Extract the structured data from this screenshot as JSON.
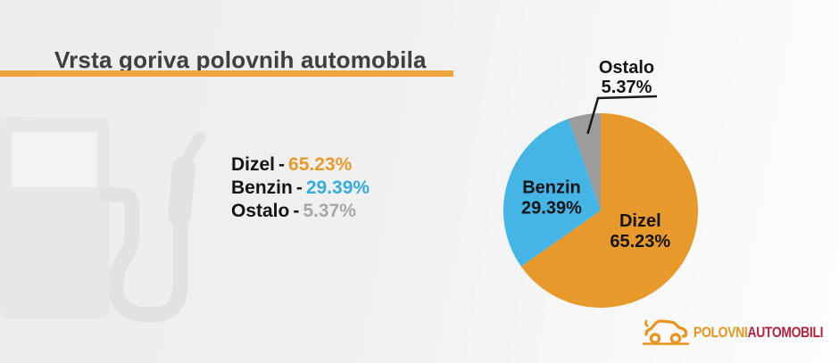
{
  "header": {
    "title": "Vrsta goriva polovnih automobila"
  },
  "legend": {
    "separator": "-",
    "items": [
      {
        "label": "Dizel",
        "value": "65.23%",
        "color": "#E89B2B"
      },
      {
        "label": "Benzin",
        "value": "29.39%",
        "color": "#35ACDE"
      },
      {
        "label": "Ostalo",
        "value": "5.37%",
        "color": "#A7A7A7"
      }
    ]
  },
  "chart_data": {
    "type": "pie",
    "title": "Vrsta goriva polovnih automobila",
    "categories": [
      "Dizel",
      "Benzin",
      "Ostalo"
    ],
    "values": [
      65.23,
      29.39,
      5.37
    ],
    "unit": "%",
    "colors": [
      "#E8992B",
      "#45B5E6",
      "#9C9C9C"
    ],
    "start_angle_deg": 0,
    "direction": "clockwise",
    "label_placement": [
      "inside",
      "inside",
      "callout"
    ],
    "label_color": "#141414",
    "callout_line_color": "#1a1a1a",
    "legend_position": "left-of-chart"
  },
  "logo": {
    "text_primary": "POLOVNI",
    "text_secondary": "AUTOMOBILI",
    "color_primary": "#E8941F",
    "color_secondary": "#B2233C",
    "icon": "car-outline-icon"
  },
  "watermark": {
    "icon": "fuel-pump-icon"
  },
  "style": {
    "accent_bar_color": "#EDA53C",
    "title_color": "#3F3F3F",
    "background_left": "#EDEDED",
    "background_right": "#FDFDFD"
  }
}
